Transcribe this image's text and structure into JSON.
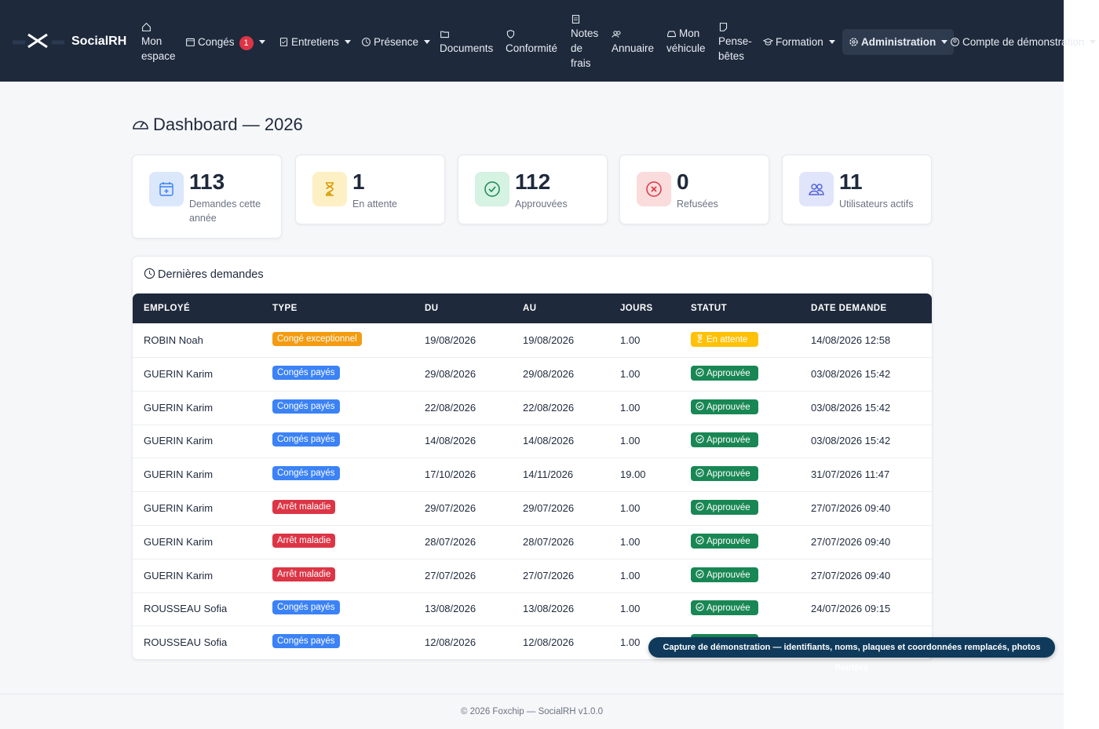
{
  "nav": {
    "brand": "SocialRH",
    "items": [
      "Mon espace",
      "Congés",
      "Entretiens",
      "Présence",
      "Documents",
      "Conformité",
      "Notes de frais",
      "Annuaire",
      "Mon véhicule",
      "Pense-bêtes",
      "Formation",
      "Administration",
      "Compte de démonstration"
    ],
    "badge": 1
  },
  "page": {
    "title": "Dashboard — 2026"
  },
  "stats": [
    {
      "value": 113,
      "label": "Demandes cette année",
      "color": "#3b82f6",
      "bg": "#dbe7fb"
    },
    {
      "value": 1,
      "label": "En attente",
      "color": "#d99a06",
      "bg": "#fdf0c4"
    },
    {
      "value": 112,
      "label": "Approuvées",
      "color": "#198754",
      "bg": "#d6f2e2"
    },
    {
      "value": 0,
      "label": "Refusées",
      "color": "#dc3545",
      "bg": "#fadcdc"
    },
    {
      "value": 11,
      "label": "Utilisateurs actifs",
      "color": "#4f62d8",
      "bg": "#e1e5fb"
    }
  ],
  "recent": {
    "title": "Dernières demandes",
    "columns": [
      "EMPLOYÉ",
      "TYPE",
      "DU",
      "AU",
      "JOURS",
      "STATUT",
      "DATE DEMANDE"
    ],
    "rows": [
      {
        "employee": "ROBIN Noah",
        "type": "Congé exceptionnel",
        "type_color": "#f39c12",
        "from": "19/08/2026",
        "to": "19/08/2026",
        "days": "1.00",
        "status": "En attente",
        "status_color": "#ffc107",
        "requested": "14/08/2026 12:58"
      },
      {
        "employee": "GUERIN Karim",
        "type": "Congés payés",
        "type_color": "#3b82f6",
        "from": "29/08/2026",
        "to": "29/08/2026",
        "days": "1.00",
        "status": "Approuvée",
        "status_color": "#198754",
        "requested": "03/08/2026 15:42"
      },
      {
        "employee": "GUERIN Karim",
        "type": "Congés payés",
        "type_color": "#3b82f6",
        "from": "22/08/2026",
        "to": "22/08/2026",
        "days": "1.00",
        "status": "Approuvée",
        "status_color": "#198754",
        "requested": "03/08/2026 15:42"
      },
      {
        "employee": "GUERIN Karim",
        "type": "Congés payés",
        "type_color": "#3b82f6",
        "from": "14/08/2026",
        "to": "14/08/2026",
        "days": "1.00",
        "status": "Approuvée",
        "status_color": "#198754",
        "requested": "03/08/2026 15:42"
      },
      {
        "employee": "GUERIN Karim",
        "type": "Congés payés",
        "type_color": "#3b82f6",
        "from": "17/10/2026",
        "to": "14/11/2026",
        "days": "19.00",
        "status": "Approuvée",
        "status_color": "#198754",
        "requested": "31/07/2026 11:47"
      },
      {
        "employee": "GUERIN Karim",
        "type": "Arrêt maladie",
        "type_color": "#dc3545",
        "from": "29/07/2026",
        "to": "29/07/2026",
        "days": "1.00",
        "status": "Approuvée",
        "status_color": "#198754",
        "requested": "27/07/2026 09:40"
      },
      {
        "employee": "GUERIN Karim",
        "type": "Arrêt maladie",
        "type_color": "#dc3545",
        "from": "28/07/2026",
        "to": "28/07/2026",
        "days": "1.00",
        "status": "Approuvée",
        "status_color": "#198754",
        "requested": "27/07/2026 09:40"
      },
      {
        "employee": "GUERIN Karim",
        "type": "Arrêt maladie",
        "type_color": "#dc3545",
        "from": "27/07/2026",
        "to": "27/07/2026",
        "days": "1.00",
        "status": "Approuvée",
        "status_color": "#198754",
        "requested": "27/07/2026 09:40"
      },
      {
        "employee": "ROUSSEAU Sofia",
        "type": "Congés payés",
        "type_color": "#3b82f6",
        "from": "13/08/2026",
        "to": "13/08/2026",
        "days": "1.00",
        "status": "Approuvée",
        "status_color": "#198754",
        "requested": "24/07/2026 09:15"
      },
      {
        "employee": "ROUSSEAU Sofia",
        "type": "Congés payés",
        "type_color": "#3b82f6",
        "from": "12/08/2026",
        "to": "12/08/2026",
        "days": "1.00",
        "status": null,
        "status_color": "#198754",
        "requested": null
      }
    ]
  },
  "notice": "Capture de démonstration — identifiants, noms, plaques et coordonnées remplacés, photos floutées",
  "footer": "© 2026 Foxchip — SocialRH v1.0.0"
}
